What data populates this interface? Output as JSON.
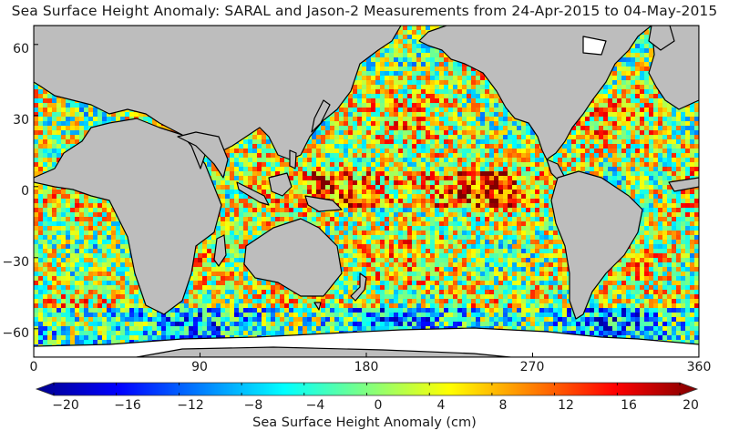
{
  "title": "Sea Surface Height Anomaly: SARAL and Jason-2 Measurements from 24-Apr-2015 to 04-May-2015",
  "map": {
    "projection": "equirectangular",
    "lon_range": [
      0,
      360
    ],
    "lat_range": [
      -72,
      68
    ],
    "lat_ticks": [
      "60",
      "30",
      "0",
      "−30",
      "−60"
    ],
    "lat_tick_values": [
      60,
      30,
      0,
      -30,
      -60
    ],
    "lon_ticks": [
      "0",
      "90",
      "180",
      "270",
      "360"
    ],
    "lon_tick_values": [
      0,
      90,
      180,
      270,
      360
    ],
    "land_color": "#bdbdbd",
    "coastline_color": "#000000"
  },
  "colorbar": {
    "label": "Sea Surface Height Anomaly (cm)",
    "min": -20,
    "max": 20,
    "ticks": [
      "−20",
      "−16",
      "−12",
      "−8",
      "−4",
      "0",
      "4",
      "8",
      "12",
      "16",
      "20"
    ],
    "tick_values": [
      -20,
      -16,
      -12,
      -8,
      -4,
      0,
      4,
      8,
      12,
      16,
      20
    ],
    "colormap": "jet",
    "colors": [
      "#00008f",
      "#0000ff",
      "#0080ff",
      "#00ffff",
      "#80ff80",
      "#ffff00",
      "#ff8000",
      "#ff0000",
      "#800000"
    ]
  }
}
